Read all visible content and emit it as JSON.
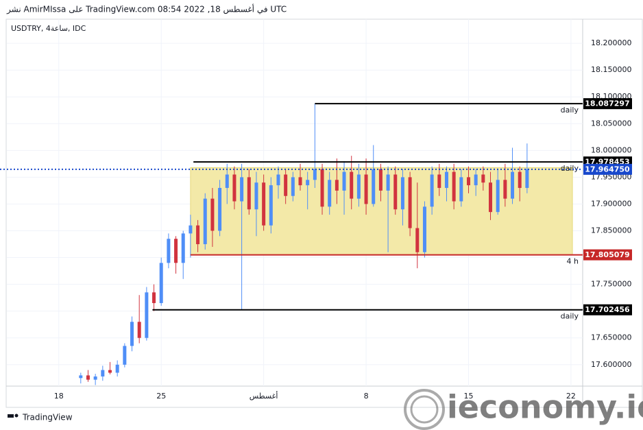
{
  "header": "نشر AmirMIssa على TradingView.com في أغسطس 18, 2022 08:54 UTC",
  "footer": "TradingView",
  "watermark": "ieconomy.io",
  "chart_data": {
    "type": "candlestick",
    "title": "USDTRY, 4ساعة, IDC",
    "up_color": "#4f8ef7",
    "down_color": "#d1333f",
    "grid": true,
    "xlim": [
      14.45,
      53.8
    ],
    "xticks": [
      {
        "value": 18,
        "label": "18"
      },
      {
        "value": 25,
        "label": "25"
      },
      {
        "value": 32,
        "label": "أغسطس"
      },
      {
        "value": 39,
        "label": "8"
      },
      {
        "value": 46,
        "label": "15"
      },
      {
        "value": 53,
        "label": "22"
      }
    ],
    "ylim": [
      17.56,
      18.245
    ],
    "yticks": [
      {
        "value": 17.6,
        "label": "17.600000"
      },
      {
        "value": 17.65,
        "label": "17.650000"
      },
      {
        "value": 17.7,
        "label": "17.700000"
      },
      {
        "value": 17.75,
        "label": "17.750000"
      },
      {
        "value": 17.8,
        "label": "17.800000"
      },
      {
        "value": 17.85,
        "label": "17.850000"
      },
      {
        "value": 17.9,
        "label": "17.900000"
      },
      {
        "value": 17.95,
        "label": "17.950000"
      },
      {
        "value": 18.0,
        "label": "18.000000"
      },
      {
        "value": 18.05,
        "label": "18.050000"
      },
      {
        "value": 18.1,
        "label": "18.100000"
      },
      {
        "value": 18.15,
        "label": "18.150000"
      },
      {
        "value": 18.2,
        "label": "18.200000"
      }
    ],
    "candles": {
      "x": [
        19.5,
        20,
        20.5,
        21,
        21.5,
        22,
        22.5,
        23,
        23.5,
        24,
        24.5,
        25,
        25.5,
        26,
        26.5,
        27,
        27.5,
        28,
        28.5,
        29,
        29.5,
        30,
        30.5,
        31,
        31.5,
        32,
        32.5,
        33,
        33.5,
        34,
        34.5,
        35,
        35.5,
        36,
        36.5,
        37,
        37.5,
        38,
        38.5,
        39,
        39.5,
        40,
        40.5,
        41,
        41.5,
        42,
        42.5,
        43,
        43.5,
        44,
        44.5,
        45,
        45.5,
        46,
        46.5,
        47,
        47.5,
        48,
        48.5,
        49,
        49.5,
        50
      ],
      "open": [
        17.575,
        17.58,
        17.572,
        17.578,
        17.59,
        17.585,
        17.6,
        17.635,
        17.68,
        17.65,
        17.735,
        17.715,
        17.79,
        17.835,
        17.79,
        17.845,
        17.86,
        17.825,
        17.91,
        17.85,
        17.93,
        17.955,
        17.905,
        17.95,
        17.89,
        17.94,
        17.86,
        17.935,
        17.955,
        17.915,
        17.95,
        17.935,
        17.945,
        17.965,
        17.895,
        17.945,
        17.925,
        17.96,
        17.91,
        17.955,
        17.9,
        17.965,
        17.925,
        17.955,
        17.89,
        17.95,
        17.855,
        17.81,
        17.895,
        17.955,
        17.93,
        17.96,
        17.905,
        17.95,
        17.935,
        17.955,
        17.94,
        17.885,
        17.945,
        17.91,
        17.96,
        17.93
      ],
      "high": [
        17.585,
        17.59,
        17.583,
        17.598,
        17.605,
        17.608,
        17.64,
        17.69,
        17.73,
        17.745,
        17.75,
        17.8,
        17.845,
        17.84,
        17.85,
        17.88,
        17.87,
        17.92,
        17.93,
        17.945,
        17.975,
        17.97,
        17.975,
        17.965,
        17.96,
        17.955,
        17.95,
        17.97,
        17.965,
        17.96,
        17.975,
        17.96,
        18.087,
        17.975,
        17.96,
        17.985,
        17.98,
        17.99,
        17.975,
        17.985,
        18.01,
        17.975,
        17.97,
        17.97,
        17.965,
        17.96,
        17.94,
        17.905,
        17.97,
        17.975,
        17.97,
        17.975,
        17.965,
        17.97,
        17.965,
        17.97,
        17.96,
        17.965,
        17.975,
        18.005,
        17.97,
        18.013
      ],
      "low": [
        17.565,
        17.568,
        17.562,
        17.57,
        17.582,
        17.578,
        17.595,
        17.625,
        17.64,
        17.645,
        17.7,
        17.71,
        17.78,
        17.77,
        17.76,
        17.8,
        17.81,
        17.815,
        17.82,
        17.84,
        17.9,
        17.89,
        17.702,
        17.88,
        17.84,
        17.85,
        17.845,
        17.91,
        17.9,
        17.905,
        17.925,
        17.89,
        17.93,
        17.88,
        17.88,
        17.9,
        17.88,
        17.89,
        17.895,
        17.88,
        17.895,
        17.905,
        17.81,
        17.88,
        17.86,
        17.84,
        17.78,
        17.8,
        17.88,
        17.915,
        17.905,
        17.89,
        17.895,
        17.92,
        17.915,
        17.925,
        17.87,
        17.88,
        17.895,
        17.9,
        17.905,
        17.92
      ],
      "close": [
        17.58,
        17.572,
        17.578,
        17.59,
        17.585,
        17.6,
        17.635,
        17.68,
        17.65,
        17.735,
        17.715,
        17.79,
        17.835,
        17.79,
        17.845,
        17.86,
        17.825,
        17.91,
        17.85,
        17.93,
        17.955,
        17.905,
        17.95,
        17.89,
        17.94,
        17.86,
        17.935,
        17.955,
        17.915,
        17.95,
        17.935,
        17.945,
        17.965,
        17.895,
        17.945,
        17.925,
        17.96,
        17.91,
        17.955,
        17.9,
        17.965,
        17.925,
        17.955,
        17.89,
        17.95,
        17.855,
        17.81,
        17.895,
        17.955,
        17.93,
        17.96,
        17.905,
        17.95,
        17.935,
        17.955,
        17.94,
        17.885,
        17.945,
        17.91,
        17.96,
        17.93,
        17.965
      ]
    },
    "zone": {
      "low": 17.805079,
      "high": 17.968,
      "start": 27.0,
      "end": 53.1,
      "color": "#f3e9a8"
    },
    "levels": [
      {
        "value": 18.087297,
        "label": "18.087297",
        "note": "daily",
        "start": 35.5,
        "color": "#000000"
      },
      {
        "value": 17.978453,
        "label": "17.978453",
        "note": "daily",
        "start": 27.2,
        "color": "#000000"
      },
      {
        "value": 17.805079,
        "label": "17.805079",
        "note": "4 h",
        "start": 27.0,
        "color": "#c62828"
      },
      {
        "value": 17.702456,
        "label": "17.702456",
        "note": "daily",
        "start": 24.4,
        "color": "#000000"
      }
    ],
    "current_price": {
      "value": 17.96475,
      "label": "17.964750",
      "color": "#1848cc"
    }
  }
}
